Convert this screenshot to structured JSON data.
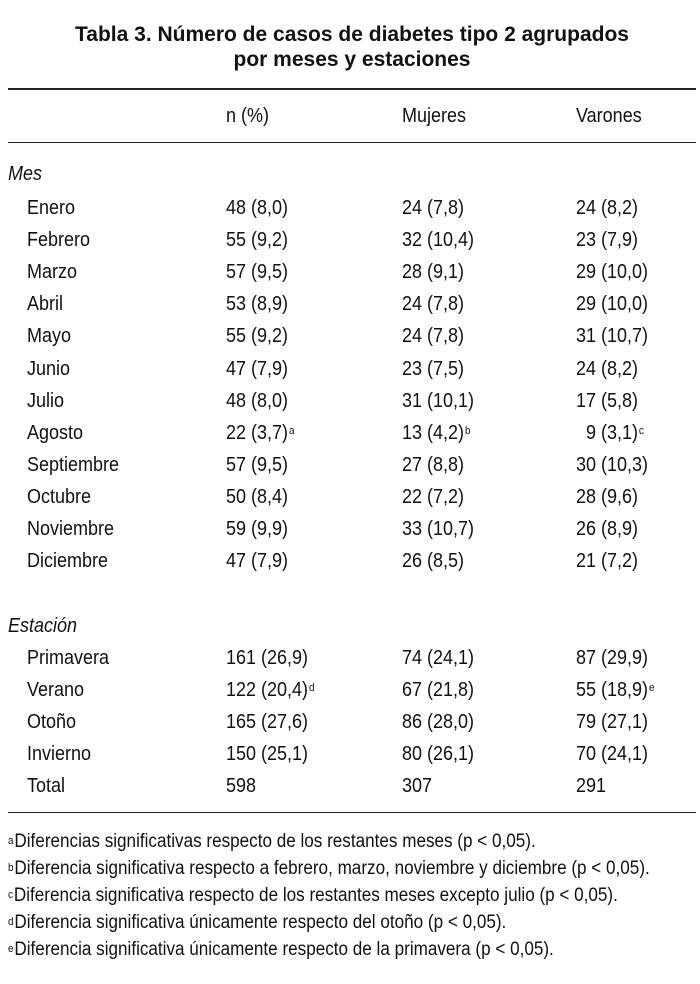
{
  "title": {
    "line1": "Tabla 3. Número de casos de diabetes tipo 2 agrupados",
    "line2": "por meses y estaciones"
  },
  "columns": {
    "n": "n (%)",
    "mujeres": "Mujeres",
    "varones": "Varones"
  },
  "sections": {
    "mes": "Mes",
    "estacion": "Estación"
  },
  "months": [
    {
      "label": "Enero",
      "n": "48 (8,0)",
      "n_sup": "",
      "m": "24 (7,8)",
      "m_sup": "",
      "v": "24 (8,2)",
      "v_sup": ""
    },
    {
      "label": "Febrero",
      "n": "55 (9,2)",
      "n_sup": "",
      "m": "32 (10,4)",
      "m_sup": "",
      "v": "23 (7,9)",
      "v_sup": ""
    },
    {
      "label": "Marzo",
      "n": "57 (9,5)",
      "n_sup": "",
      "m": "28 (9,1)",
      "m_sup": "",
      "v": "29 (10,0)",
      "v_sup": ""
    },
    {
      "label": "Abril",
      "n": "53 (8,9)",
      "n_sup": "",
      "m": "24 (7,8)",
      "m_sup": "",
      "v": "29 (10,0)",
      "v_sup": ""
    },
    {
      "label": "Mayo",
      "n": "55 (9,2)",
      "n_sup": "",
      "m": "24 (7,8)",
      "m_sup": "",
      "v": "31 (10,7)",
      "v_sup": ""
    },
    {
      "label": "Junio",
      "n": "47 (7,9)",
      "n_sup": "",
      "m": "23 (7,5)",
      "m_sup": "",
      "v": "24 (8,2)",
      "v_sup": ""
    },
    {
      "label": "Julio",
      "n": "48 (8,0)",
      "n_sup": "",
      "m": "31 (10,1)",
      "m_sup": "",
      "v": "17 (5,8)",
      "v_sup": ""
    },
    {
      "label": "Agosto",
      "n": "22 (3,7)",
      "n_sup": "a",
      "m": "13 (4,2)",
      "m_sup": "b",
      "v": "9 (3,1)",
      "v_sup": "c"
    },
    {
      "label": "Septiembre",
      "n": "57 (9,5)",
      "n_sup": "",
      "m": "27 (8,8)",
      "m_sup": "",
      "v": "30 (10,3)",
      "v_sup": ""
    },
    {
      "label": "Octubre",
      "n": "50 (8,4)",
      "n_sup": "",
      "m": "22 (7,2)",
      "m_sup": "",
      "v": "28 (9,6)",
      "v_sup": ""
    },
    {
      "label": "Noviembre",
      "n": "59 (9,9)",
      "n_sup": "",
      "m": "33 (10,7)",
      "m_sup": "",
      "v": "26 (8,9)",
      "v_sup": ""
    },
    {
      "label": "Diciembre",
      "n": "47 (7,9)",
      "n_sup": "",
      "m": "26 (8,5)",
      "m_sup": "",
      "v": "21 (7,2)",
      "v_sup": ""
    }
  ],
  "seasons": [
    {
      "label": "Primavera",
      "n": "161 (26,9)",
      "n_sup": "",
      "m": "74 (24,1)",
      "m_sup": "",
      "v": "87 (29,9)",
      "v_sup": ""
    },
    {
      "label": "Verano",
      "n": "122 (20,4)",
      "n_sup": "d",
      "m": "67 (21,8)",
      "m_sup": "",
      "v": "55 (18,9)",
      "v_sup": "e"
    },
    {
      "label": "Otoño",
      "n": "165 (27,6)",
      "n_sup": "",
      "m": "86 (28,0)",
      "m_sup": "",
      "v": "79 (27,1)",
      "v_sup": ""
    },
    {
      "label": "Invierno",
      "n": "150 (25,1)",
      "n_sup": "",
      "m": "80 (26,1)",
      "m_sup": "",
      "v": "70 (24,1)",
      "v_sup": ""
    },
    {
      "label": "Total",
      "n": "598",
      "n_sup": "",
      "m": "307",
      "m_sup": "",
      "v": "291",
      "v_sup": ""
    }
  ],
  "footnotes": [
    {
      "mark": "a",
      "text": "Diferencias significativas respecto de los restantes meses (p < 0,05)."
    },
    {
      "mark": "b",
      "text": "Diferencia significativa respecto a febrero, marzo, noviembre y diciembre (p < 0,05)."
    },
    {
      "mark": "c",
      "text": "Diferencia significativa respecto de los restantes meses excepto julio (p < 0,05)."
    },
    {
      "mark": "d",
      "text": "Diferencia significativa únicamente respecto del otoño (p < 0,05)."
    },
    {
      "mark": "e",
      "text": "Diferencia significativa únicamente respecto de la primavera (p < 0,05)."
    }
  ]
}
